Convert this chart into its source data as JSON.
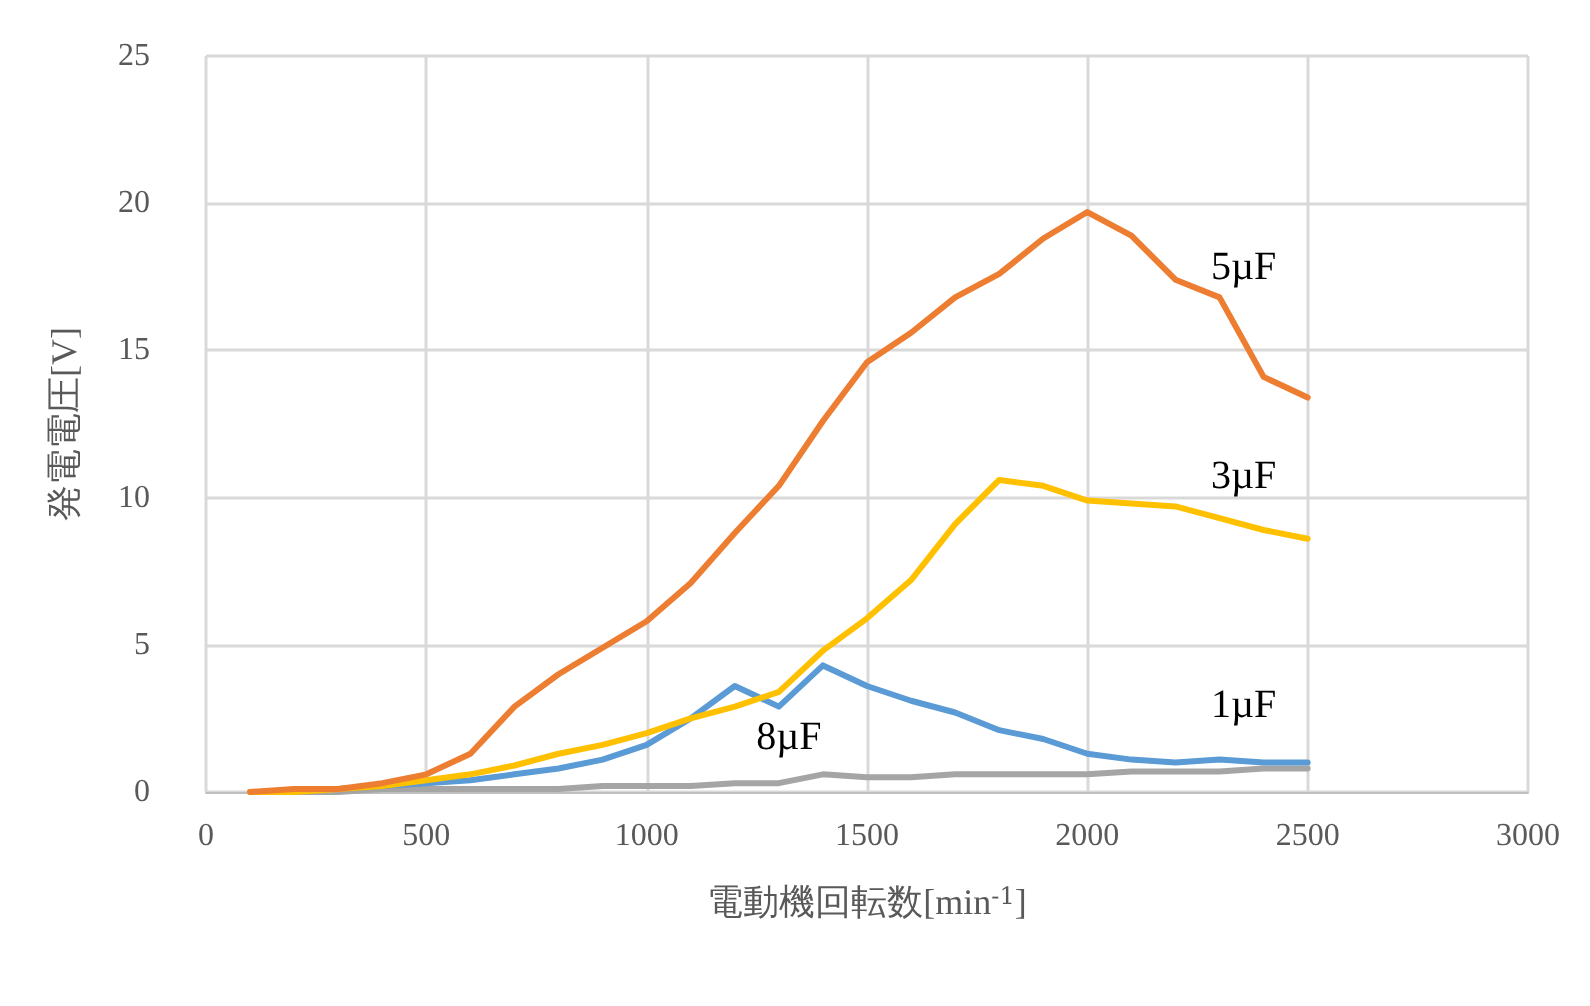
{
  "chart_data": {
    "type": "line",
    "xlabel": "電動機回転数[min$^{-1}$]",
    "ylabel": "発電電圧[V]",
    "x": [
      100,
      200,
      300,
      400,
      500,
      600,
      700,
      800,
      900,
      1000,
      1100,
      1200,
      1300,
      1400,
      1500,
      1600,
      1700,
      1800,
      1900,
      2000,
      2100,
      2200,
      2300,
      2400,
      2500
    ],
    "series": [
      {
        "name": "5µF",
        "color": "#ed7d31",
        "values": [
          0,
          0.1,
          0.1,
          0.3,
          0.6,
          1.3,
          2.9,
          4.0,
          4.9,
          5.8,
          7.1,
          8.8,
          10.4,
          12.6,
          14.6,
          15.6,
          16.8,
          17.6,
          18.8,
          19.7,
          18.9,
          17.4,
          16.8,
          14.1,
          13.4
        ]
      },
      {
        "name": "3µF",
        "color": "#ffc000",
        "values": [
          0,
          0,
          0.1,
          0.2,
          0.4,
          0.6,
          0.9,
          1.3,
          1.6,
          2.0,
          2.5,
          2.9,
          3.4,
          4.8,
          5.9,
          7.2,
          9.1,
          10.6,
          10.4,
          9.9,
          9.8,
          9.7,
          9.3,
          8.9,
          8.6
        ]
      },
      {
        "name": "1µF",
        "color": "#5b9bd5",
        "values": [
          null,
          null,
          0.1,
          0.2,
          0.3,
          0.4,
          0.6,
          0.8,
          1.1,
          1.6,
          2.5,
          3.6,
          2.9,
          4.3,
          3.6,
          3.1,
          2.7,
          2.1,
          1.8,
          1.3,
          1.1,
          1.0,
          1.1,
          1.0,
          1.0
        ]
      },
      {
        "name": "8µF",
        "color": "#a5a5a5",
        "values": [
          0,
          0,
          0,
          0.1,
          0.1,
          0.1,
          0.1,
          0.1,
          0.2,
          0.2,
          0.2,
          0.3,
          0.3,
          0.6,
          0.5,
          0.5,
          0.6,
          0.6,
          0.6,
          0.6,
          0.7,
          0.7,
          0.7,
          0.8,
          0.8
        ]
      }
    ],
    "xlim": [
      0,
      3000
    ],
    "xticks": [
      0,
      500,
      1000,
      1500,
      2000,
      2500,
      3000
    ],
    "ylim": [
      0,
      25
    ],
    "yticks": [
      0,
      5,
      10,
      15,
      20,
      25
    ],
    "grid": true,
    "legend": false,
    "marker": "none",
    "line_style": "solid"
  }
}
